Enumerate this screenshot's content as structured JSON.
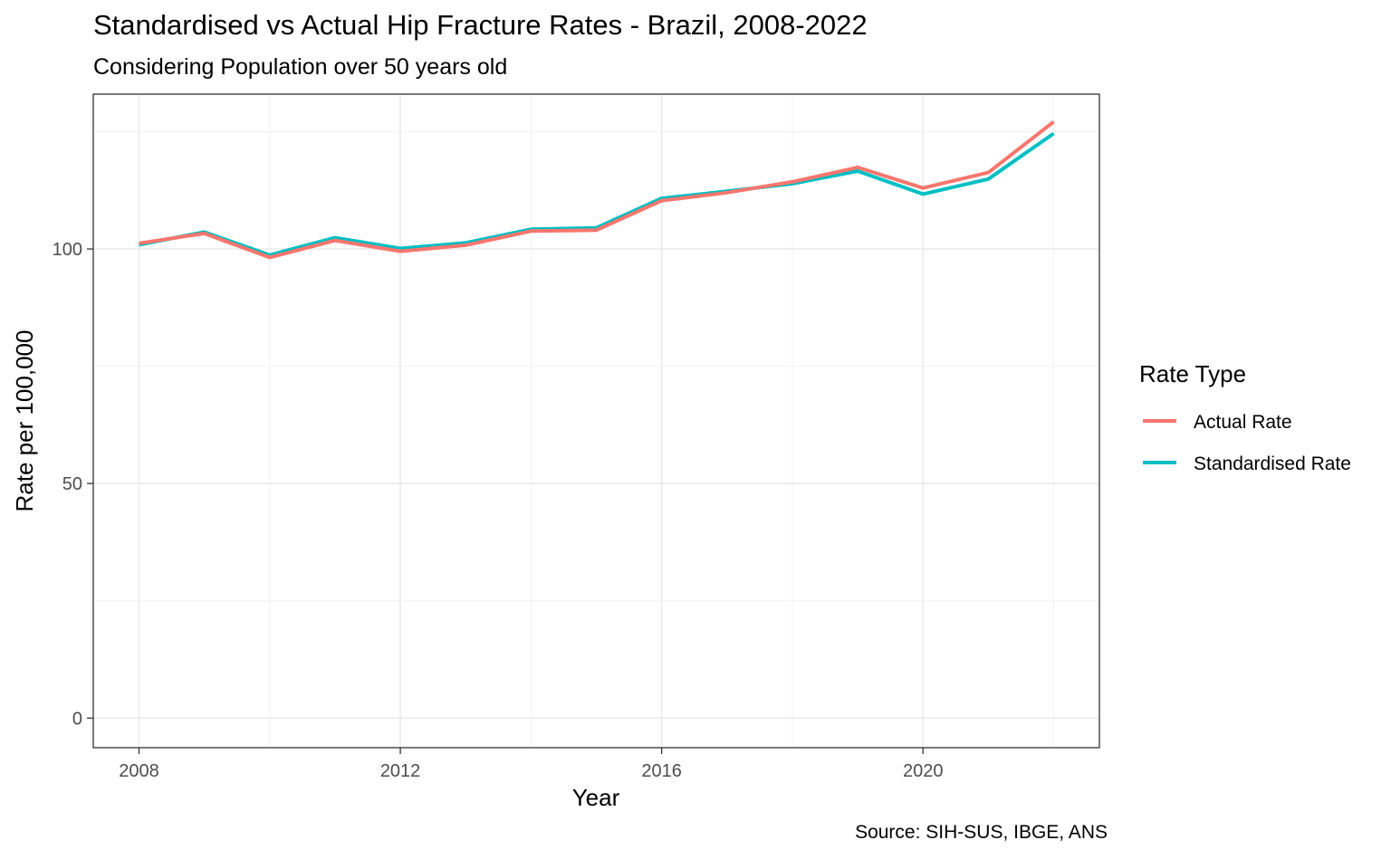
{
  "title": "Standardised vs Actual Hip Fracture Rates - Brazil, 2008-2022",
  "subtitle": "Considering Population over 50 years old",
  "caption": "Source: SIH-SUS, IBGE, ANS",
  "chart_data": {
    "type": "line",
    "title": "Standardised vs Actual Hip Fracture Rates - Brazil, 2008-2022",
    "subtitle": "Considering Population over 50 years old",
    "xlabel": "Year",
    "ylabel": "Rate per 100,000",
    "x": [
      2008,
      2009,
      2010,
      2011,
      2012,
      2013,
      2014,
      2015,
      2016,
      2017,
      2018,
      2019,
      2020,
      2021,
      2022
    ],
    "xlim": [
      2007.3,
      2022.7
    ],
    "ylim": [
      -6.3,
      133
    ],
    "x_ticks": [
      2008,
      2012,
      2016,
      2020
    ],
    "x_tick_labels": [
      "2008",
      "2012",
      "2016",
      "2020"
    ],
    "y_ticks": [
      0,
      50,
      100
    ],
    "y_tick_labels": [
      "0",
      "50",
      "100"
    ],
    "grid": true,
    "legend": {
      "title": "Rate Type",
      "position": "right"
    },
    "series": [
      {
        "name": "Actual Rate",
        "color": "#F8766D",
        "values": [
          101.2,
          103.3,
          98.2,
          101.8,
          99.5,
          100.8,
          103.8,
          104.0,
          110.3,
          112.0,
          114.3,
          117.4,
          113.0,
          116.3,
          127.1
        ]
      },
      {
        "name": "Standardised Rate",
        "color": "#00BFC4",
        "values": [
          100.9,
          103.6,
          98.7,
          102.4,
          100.1,
          101.3,
          104.2,
          104.5,
          110.8,
          112.3,
          113.9,
          116.6,
          111.7,
          114.9,
          124.6
        ]
      }
    ],
    "caption": "Source: SIH-SUS, IBGE, ANS"
  }
}
